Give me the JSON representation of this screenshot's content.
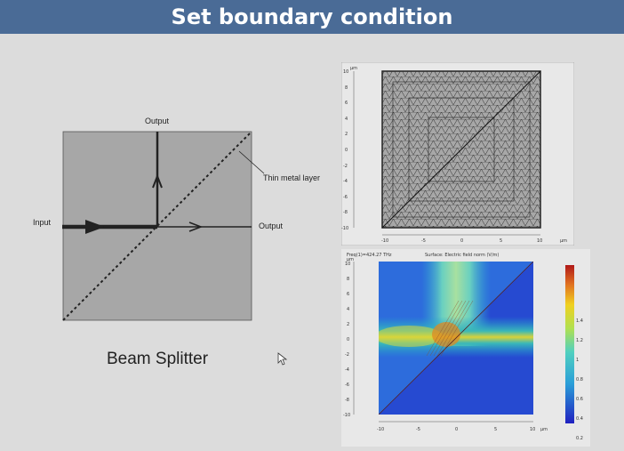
{
  "slide": {
    "title": "Set boundary condition"
  },
  "diagram": {
    "output_top": "Output",
    "output_right": "Output",
    "input": "Input",
    "thin_metal_layer": "Thin metal layer",
    "caption": "Beam Splitter",
    "box_color": "#a7a7a7"
  },
  "mesh_plot": {
    "unit_label": "µm",
    "y_ticks": [
      "10",
      "8",
      "6",
      "4",
      "2",
      "0",
      "-2",
      "-4",
      "-6",
      "-8",
      "-10"
    ],
    "x_ticks": [
      "-10",
      "-5",
      "0",
      "5",
      "10"
    ]
  },
  "field_plot": {
    "header_left": "Freq(1)=424.27 THz",
    "header_right": "Surface: Electric field norm (V/m)",
    "unit_label": "µm",
    "y_ticks": [
      "10",
      "8",
      "6",
      "4",
      "2",
      "0",
      "-2",
      "-4",
      "-6",
      "-8",
      "-10"
    ],
    "x_ticks": [
      "-10",
      "-5",
      "0",
      "5",
      "10"
    ],
    "colorbar_ticks": [
      "1.4",
      "1.2",
      "1",
      "0.8",
      "0.6",
      "0.4",
      "0.2"
    ]
  },
  "icons": {
    "cursor": "mouse-pointer-icon"
  }
}
